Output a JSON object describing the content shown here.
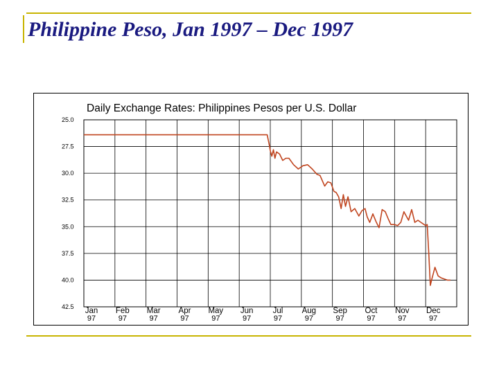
{
  "slide": {
    "title": "Philippine Peso, Jan 1997 – Dec 1997",
    "decoration_color": "#c8b400",
    "title_color": "#1a1a80"
  },
  "chart_data": {
    "type": "line",
    "title": "Daily Exchange Rates: Philippines Pesos per U.S. Dollar",
    "xlabel": "",
    "ylabel": "",
    "y_inverted": true,
    "ylim": [
      25.0,
      42.5
    ],
    "yticks": [
      "25.0",
      "27.5",
      "30.0",
      "32.5",
      "35.0",
      "37.5",
      "40.0",
      "42.5"
    ],
    "ytick_values": [
      25.0,
      27.5,
      30.0,
      32.5,
      35.0,
      37.5,
      40.0,
      42.5
    ],
    "xticks": [
      {
        "month": "Jan",
        "year": "97"
      },
      {
        "month": "Feb",
        "year": "97"
      },
      {
        "month": "Mar",
        "year": "97"
      },
      {
        "month": "Apr",
        "year": "97"
      },
      {
        "month": "May",
        "year": "97"
      },
      {
        "month": "Jun",
        "year": "97"
      },
      {
        "month": "Jul",
        "year": "97"
      },
      {
        "month": "Aug",
        "year": "97"
      },
      {
        "month": "Sep",
        "year": "97"
      },
      {
        "month": "Oct",
        "year": "97"
      },
      {
        "month": "Nov",
        "year": "97"
      },
      {
        "month": "Dec",
        "year": "97"
      }
    ],
    "grid": true,
    "line_color": "#c0441e",
    "series": [
      {
        "x": [
          0.0,
          0.5,
          1.0,
          1.5,
          2.0,
          2.5,
          3.0,
          3.5,
          4.0,
          4.5,
          5.0,
          5.5,
          5.9,
          5.97,
          6.0,
          6.05,
          6.1,
          6.15,
          6.2,
          6.3,
          6.4,
          6.5,
          6.6,
          6.75,
          6.9,
          7.05,
          7.2,
          7.35,
          7.5,
          7.6,
          7.75,
          7.85,
          7.95,
          8.05,
          8.12,
          8.2,
          8.28,
          8.35,
          8.42,
          8.5,
          8.6,
          8.72,
          8.85,
          8.95,
          9.05,
          9.12,
          9.2,
          9.3,
          9.4,
          9.5,
          9.6,
          9.7,
          9.8,
          9.88,
          10.0,
          10.1,
          10.2,
          10.3,
          10.45,
          10.55,
          10.65,
          10.75,
          10.85,
          10.95,
          11.0,
          11.05,
          11.1,
          11.15,
          11.2,
          11.3,
          11.4,
          11.5,
          11.6,
          11.7,
          11.8
        ],
        "y": [
          26.4,
          26.4,
          26.4,
          26.4,
          26.4,
          26.4,
          26.4,
          26.4,
          26.4,
          26.4,
          26.4,
          26.4,
          26.4,
          27.4,
          27.9,
          28.4,
          27.8,
          28.6,
          28.0,
          28.2,
          28.8,
          28.6,
          28.6,
          29.2,
          29.6,
          29.3,
          29.2,
          29.6,
          30.1,
          30.2,
          31.2,
          30.8,
          30.9,
          31.7,
          31.8,
          32.2,
          33.3,
          32.0,
          33.1,
          32.2,
          33.6,
          33.3,
          34.0,
          33.5,
          33.3,
          34.1,
          34.6,
          33.8,
          34.5,
          35.1,
          33.4,
          33.6,
          34.3,
          34.8,
          34.8,
          34.9,
          34.6,
          33.6,
          34.4,
          33.4,
          34.6,
          34.4,
          34.6,
          34.8,
          34.9,
          34.8,
          37.5,
          40.5,
          39.9,
          38.8,
          39.6,
          39.8,
          39.9,
          40.0,
          40.0
        ]
      }
    ]
  }
}
